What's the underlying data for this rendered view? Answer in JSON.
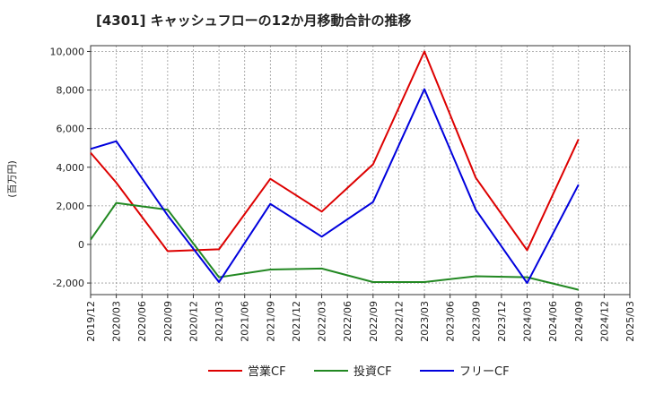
{
  "chart_data": {
    "type": "line",
    "title": "[4301]  キャッシュフローの12か月移動合計の推移",
    "ylabel": "(百万円)",
    "xlabel": "",
    "ylim": [
      -2600,
      10300
    ],
    "yticks": [
      -2000,
      0,
      2000,
      4000,
      6000,
      8000,
      10000
    ],
    "ytick_labels": [
      "-2,000",
      "0",
      "2,000",
      "4,000",
      "6,000",
      "8,000",
      "10,000"
    ],
    "x_labels": [
      "2019/12",
      "2020/03",
      "2020/06",
      "2020/09",
      "2020/12",
      "2021/03",
      "2021/06",
      "2021/09",
      "2021/12",
      "2022/03",
      "2022/06",
      "2022/09",
      "2022/12",
      "2023/03",
      "2023/06",
      "2023/09",
      "2023/12",
      "2024/03",
      "2024/06",
      "2024/09",
      "2024/12",
      "2025/03"
    ],
    "grid": true,
    "legend_position": "bottom",
    "series": [
      {
        "name": "営業CF",
        "color": "#dd0000",
        "points": [
          [
            0,
            4750
          ],
          [
            1,
            3200
          ],
          [
            3,
            -350
          ],
          [
            5,
            -250
          ],
          [
            7,
            3400
          ],
          [
            9,
            1700
          ],
          [
            11,
            4150
          ],
          [
            13,
            10000
          ],
          [
            15,
            3450
          ],
          [
            17,
            -300
          ],
          [
            19,
            5450
          ]
        ]
      },
      {
        "name": "投資CF",
        "color": "#228822",
        "points": [
          [
            0,
            250
          ],
          [
            1,
            2150
          ],
          [
            3,
            1800
          ],
          [
            5,
            -1700
          ],
          [
            7,
            -1300
          ],
          [
            9,
            -1250
          ],
          [
            11,
            -1950
          ],
          [
            13,
            -1950
          ],
          [
            15,
            -1650
          ],
          [
            17,
            -1700
          ],
          [
            19,
            -2350
          ]
        ]
      },
      {
        "name": "フリーCF",
        "color": "#0000dd",
        "points": [
          [
            0,
            4950
          ],
          [
            1,
            5350
          ],
          [
            3,
            1500
          ],
          [
            5,
            -1950
          ],
          [
            7,
            2100
          ],
          [
            9,
            400
          ],
          [
            11,
            2200
          ],
          [
            13,
            8050
          ],
          [
            15,
            1800
          ],
          [
            17,
            -2000
          ],
          [
            19,
            3100
          ]
        ]
      }
    ]
  }
}
